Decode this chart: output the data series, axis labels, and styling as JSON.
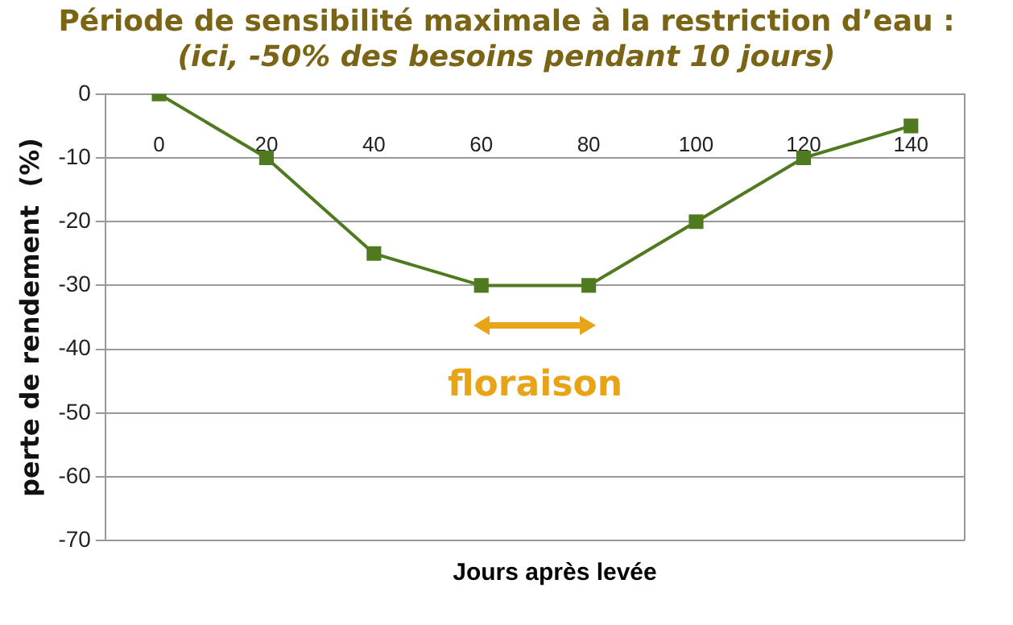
{
  "chart_data": {
    "type": "line",
    "title": "Période de sensibilité maximale à la restriction d’eau :",
    "subtitle": "(ici, -50% des besoins pendant 10 jours)",
    "xlabel": "Jours après levée",
    "ylabel": "perte de rendement  (%)",
    "x": [
      0,
      20,
      40,
      60,
      80,
      100,
      120,
      140
    ],
    "series": [
      {
        "color": "#4f7a1f",
        "values": [
          0,
          -10,
          -25,
          -30,
          -30,
          -20,
          -10,
          -5
        ]
      }
    ],
    "xlim": [
      -10,
      150
    ],
    "xticks": [
      0,
      20,
      40,
      60,
      80,
      100,
      120,
      140
    ],
    "ylim": [
      -70,
      0
    ],
    "yticks": [
      -70,
      -60,
      -50,
      -40,
      -30,
      -20,
      -10,
      0
    ],
    "grid": "y",
    "legend": false,
    "marker": "square",
    "line_style": "solid",
    "annotations": [
      "floraison"
    ]
  }
}
